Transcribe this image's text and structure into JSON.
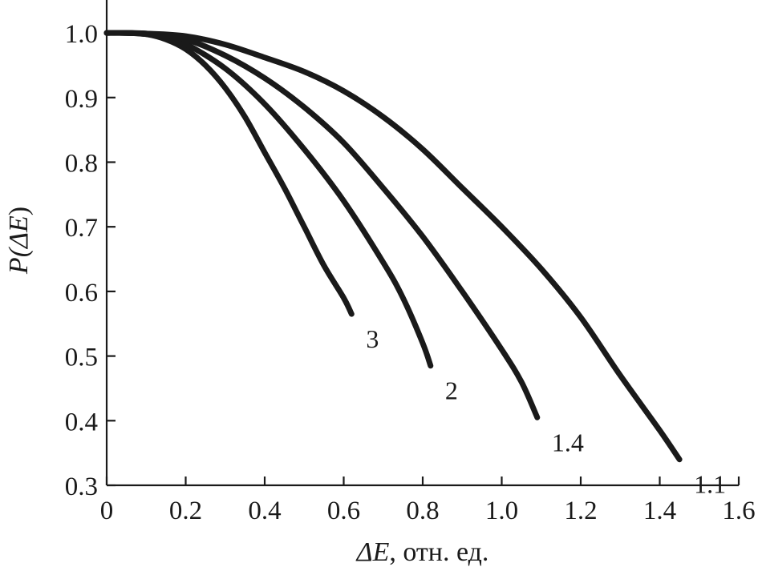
{
  "chart_data": {
    "type": "line",
    "title": "",
    "xlabel_symbol": "ΔE",
    "xlabel_units": ", отн. ед.",
    "ylabel_prefix": "P(",
    "ylabel_symbol": "ΔE",
    "ylabel_suffix": ")",
    "xlim": [
      0,
      1.6
    ],
    "ylim": [
      0.3,
      1.05
    ],
    "xticks": [
      0,
      0.2,
      0.4,
      0.6,
      0.8,
      1.0,
      1.2,
      1.4,
      1.6
    ],
    "xtick_labels": [
      "0",
      "0.2",
      "0.4",
      "0.6",
      "0.8",
      "1.0",
      "1.2",
      "1.4",
      "1.6"
    ],
    "yticks": [
      0.3,
      0.4,
      0.5,
      0.6,
      0.7,
      0.8,
      0.9,
      1.0
    ],
    "ytick_labels": [
      "0.3",
      "0.4",
      "0.5",
      "0.6",
      "0.7",
      "0.8",
      "0.9",
      "1.0"
    ],
    "grid": false,
    "line_color": "#1a1a1a",
    "series": [
      {
        "label": "3",
        "x": [
          0,
          0.05,
          0.1,
          0.15,
          0.2,
          0.25,
          0.3,
          0.35,
          0.4,
          0.45,
          0.5,
          0.55,
          0.6,
          0.62
        ],
        "y": [
          1.0,
          1.0,
          0.998,
          0.99,
          0.975,
          0.95,
          0.915,
          0.87,
          0.815,
          0.76,
          0.7,
          0.64,
          0.59,
          0.565
        ]
      },
      {
        "label": "2",
        "x": [
          0,
          0.05,
          0.1,
          0.15,
          0.2,
          0.3,
          0.4,
          0.5,
          0.6,
          0.7,
          0.75,
          0.8,
          0.82
        ],
        "y": [
          1.0,
          1.0,
          0.998,
          0.993,
          0.983,
          0.945,
          0.89,
          0.82,
          0.74,
          0.645,
          0.59,
          0.52,
          0.485
        ]
      },
      {
        "label": "1.4",
        "x": [
          0,
          0.1,
          0.2,
          0.3,
          0.4,
          0.5,
          0.6,
          0.7,
          0.8,
          0.9,
          1.0,
          1.05,
          1.09
        ],
        "y": [
          1.0,
          0.999,
          0.99,
          0.965,
          0.93,
          0.885,
          0.83,
          0.76,
          0.685,
          0.6,
          0.51,
          0.46,
          0.405
        ]
      },
      {
        "label": "1.1",
        "x": [
          0,
          0.1,
          0.2,
          0.3,
          0.4,
          0.5,
          0.6,
          0.7,
          0.8,
          0.9,
          1.0,
          1.1,
          1.2,
          1.3,
          1.4,
          1.45
        ],
        "y": [
          1.0,
          0.999,
          0.995,
          0.982,
          0.962,
          0.94,
          0.91,
          0.87,
          0.82,
          0.76,
          0.7,
          0.635,
          0.56,
          0.47,
          0.385,
          0.34
        ]
      }
    ]
  }
}
